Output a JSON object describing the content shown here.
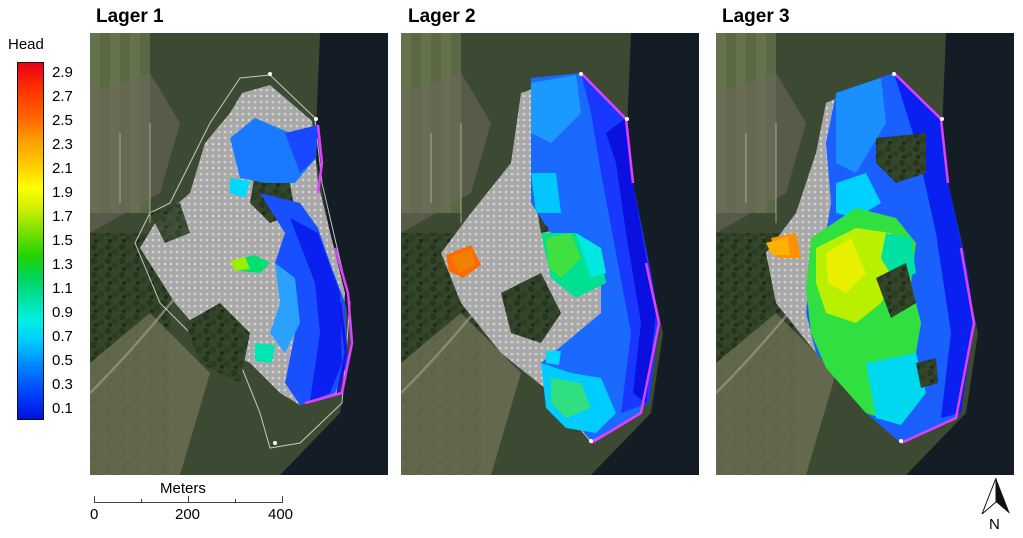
{
  "panels": [
    {
      "title": "Lager 1"
    },
    {
      "title": "Lager 2"
    },
    {
      "title": "Lager 3"
    }
  ],
  "legend": {
    "title": "Head",
    "labels": [
      "2.9",
      "2.7",
      "2.5",
      "2.3",
      "2.1",
      "1.9",
      "1.7",
      "1.5",
      "1.3",
      "1.1",
      "0.9",
      "0.7",
      "0.5",
      "0.3",
      "0.1"
    ],
    "color_low": "#0010e0",
    "color_high": "#e8001a"
  },
  "scale_bar": {
    "title": "Meters",
    "labels": [
      "0",
      "200",
      "400"
    ]
  },
  "north_arrow": {
    "label": "N"
  },
  "colors": {
    "inactive_cells": "#b4b4b4",
    "river": "#141d26",
    "boundary": "#e040ff"
  }
}
